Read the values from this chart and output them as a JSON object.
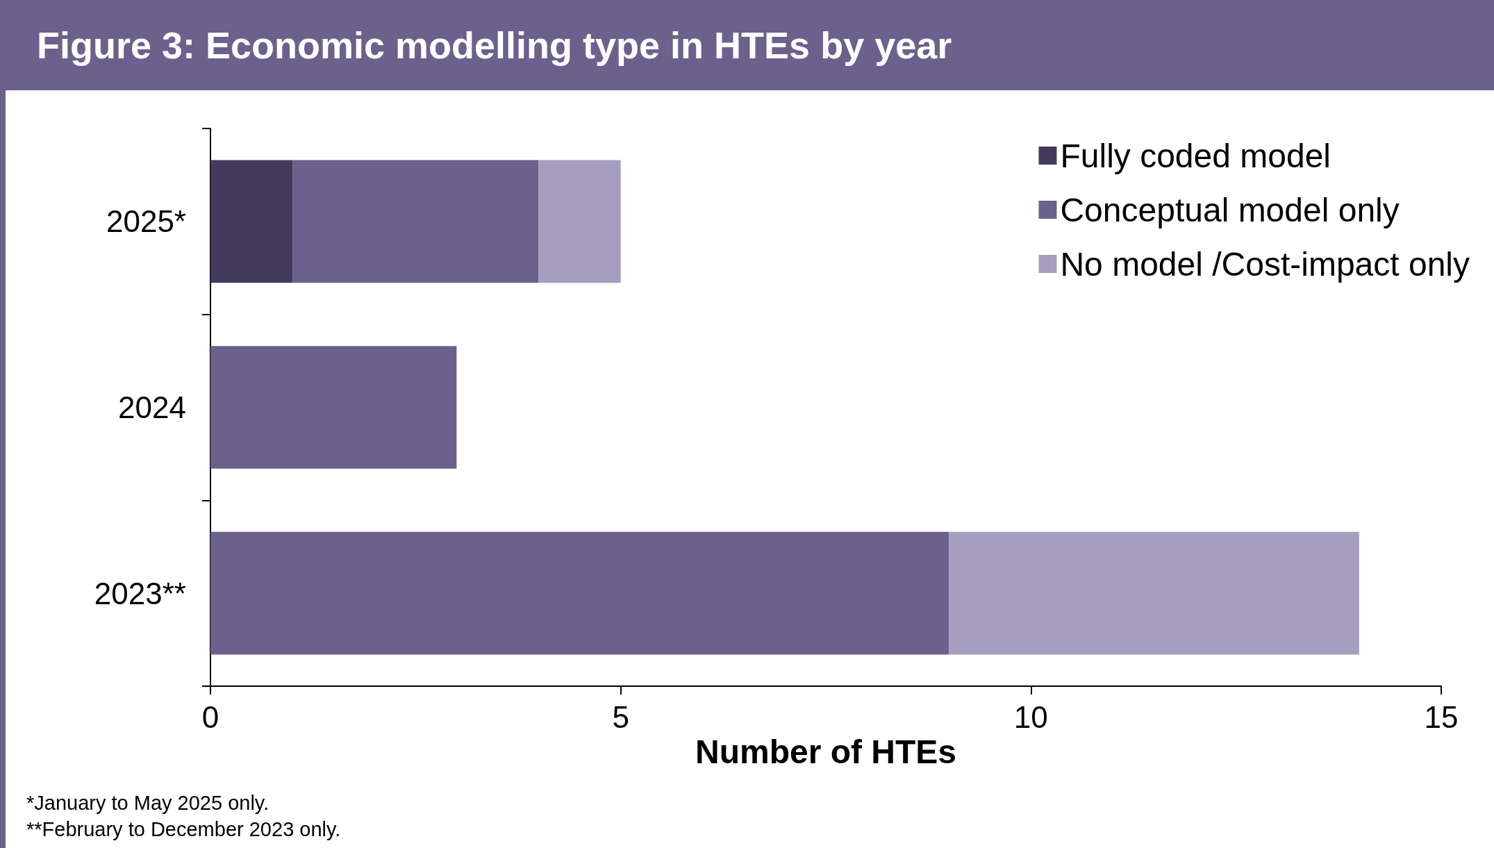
{
  "chart_data": {
    "type": "bar",
    "orientation": "horizontal",
    "stacked": true,
    "title": "Figure 3: Economic modelling type in HTEs by year",
    "xlabel": "Number of HTEs",
    "categories": [
      "2025*",
      "2024",
      "2023**"
    ],
    "series": [
      {
        "name": "Fully coded model",
        "color": "#443a5e",
        "values": [
          1,
          0,
          0
        ]
      },
      {
        "name": "Conceptual model only",
        "color": "#6b618c",
        "values": [
          3,
          3,
          9
        ]
      },
      {
        "name": "No model /Cost-impact only",
        "color": "#a59ebf",
        "values": [
          1,
          0,
          5
        ]
      }
    ],
    "xlim": [
      0,
      15
    ],
    "xticks": [
      0,
      5,
      10,
      15
    ],
    "grid": false,
    "legend": "top right",
    "annotations": [
      "*January to May 2025 only.",
      "**February to December 2023 only."
    ]
  }
}
